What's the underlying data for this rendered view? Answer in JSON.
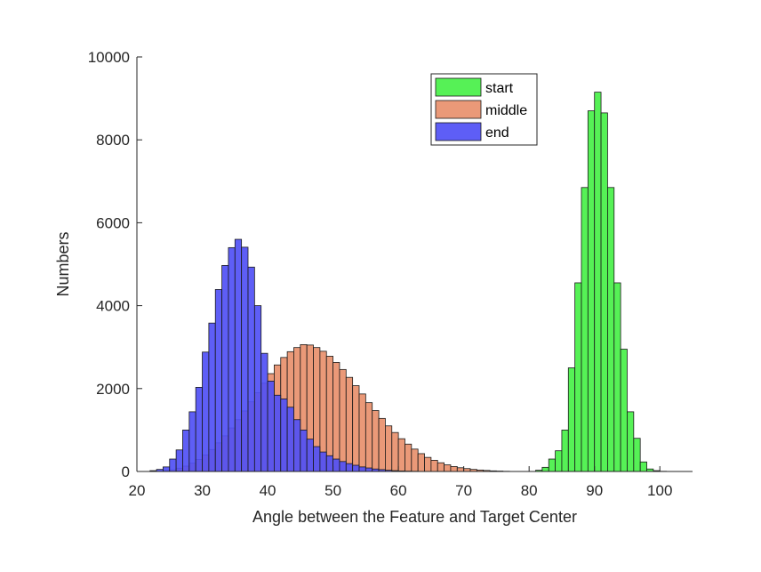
{
  "chart_data": {
    "type": "bar",
    "title": "",
    "xlabel": "Angle between the Feature and Target Center",
    "ylabel": "Numbers",
    "xlim": [
      20,
      105
    ],
    "ylim": [
      0,
      10000
    ],
    "xticks": [
      20,
      30,
      40,
      50,
      60,
      70,
      80,
      90,
      100
    ],
    "yticks": [
      0,
      2000,
      4000,
      6000,
      8000,
      10000
    ],
    "bin_width": 1,
    "grid": false,
    "legend_position": "top-center",
    "series": [
      {
        "name": "middle",
        "color": "#E8906C",
        "bin_start": 24,
        "values": [
          20,
          40,
          80,
          130,
          200,
          290,
          400,
          530,
          690,
          860,
          1050,
          1250,
          1460,
          1680,
          1900,
          2130,
          2360,
          2570,
          2750,
          2890,
          2990,
          3060,
          3050,
          2990,
          2900,
          2780,
          2630,
          2460,
          2270,
          2070,
          1870,
          1660,
          1470,
          1280,
          1100,
          940,
          790,
          660,
          540,
          430,
          340,
          270,
          210,
          160,
          120,
          90,
          70,
          50,
          35,
          25,
          15,
          10,
          5
        ]
      },
      {
        "name": "end",
        "color": "#5050F5",
        "bin_start": 22,
        "values": [
          20,
          50,
          110,
          300,
          520,
          1000,
          1440,
          2030,
          2880,
          3580,
          4390,
          4970,
          5400,
          5600,
          5410,
          4930,
          4000,
          2850,
          2180,
          1840,
          1750,
          1550,
          1250,
          1000,
          780,
          600,
          470,
          380,
          300,
          240,
          190,
          150,
          110,
          85,
          60,
          45,
          30,
          20,
          12,
          8,
          5
        ]
      },
      {
        "name": "start",
        "color": "#48F048",
        "bin_start": 81,
        "values": [
          30,
          100,
          300,
          500,
          1000,
          2500,
          4550,
          6850,
          8700,
          9150,
          8650,
          6850,
          4550,
          2950,
          1440,
          800,
          230,
          60,
          20,
          5
        ]
      }
    ]
  },
  "legend": {
    "items": [
      {
        "label": "start",
        "color": "#48F048"
      },
      {
        "label": "middle",
        "color": "#E8906C"
      },
      {
        "label": "end",
        "color": "#5050F5"
      }
    ]
  }
}
